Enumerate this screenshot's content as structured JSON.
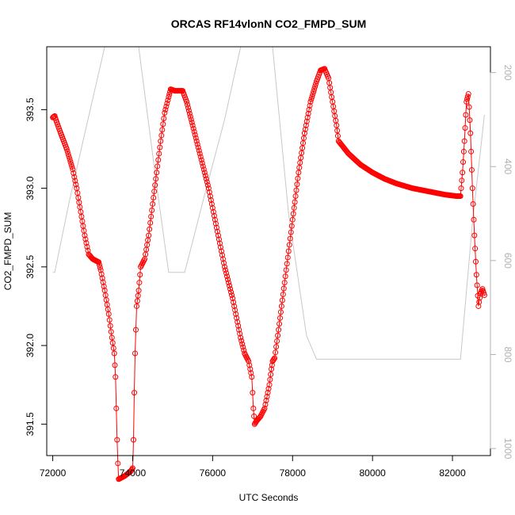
{
  "chart_data": {
    "type": "scatter",
    "title": "ORCAS RF14vlonN CO2_FMPD_SUM",
    "xlabel": "UTC Seconds",
    "ylabel": "CO2_FMPD_SUM",
    "xlim": [
      71850,
      82950
    ],
    "ylim": [
      391.3,
      393.9
    ],
    "y2lim": [
      1015,
      145
    ],
    "x_ticks": [
      72000,
      74000,
      76000,
      78000,
      80000,
      82000
    ],
    "x_tick_labels": [
      "72000",
      "74000",
      "76000",
      "78000",
      "80000",
      "82000"
    ],
    "y_ticks": [
      391.5,
      392.0,
      392.5,
      393.0,
      393.5
    ],
    "y_tick_labels": [
      "391.5",
      "392.0",
      "392.5",
      "393.0",
      "393.5"
    ],
    "y2_ticks": [
      200,
      400,
      600,
      800,
      1000
    ],
    "y2_tick_labels": [
      "200",
      "400",
      "600",
      "800",
      "1000"
    ],
    "grid": false,
    "series": [
      {
        "role": "co2",
        "color": "#ff0000",
        "marker": "open-circle",
        "line": true,
        "points": [
          [
            72000,
            393.45
          ],
          [
            72050,
            393.46
          ],
          [
            72100,
            393.42
          ],
          [
            72200,
            393.35
          ],
          [
            72350,
            393.25
          ],
          [
            72500,
            393.12
          ],
          [
            72600,
            393.0
          ],
          [
            72700,
            392.85
          ],
          [
            72800,
            392.7
          ],
          [
            72900,
            392.58
          ],
          [
            73000,
            392.55
          ],
          [
            73150,
            392.53
          ],
          [
            73200,
            392.48
          ],
          [
            73300,
            392.35
          ],
          [
            73400,
            392.2
          ],
          [
            73480,
            392.05
          ],
          [
            73540,
            391.95
          ],
          [
            73570,
            391.8
          ],
          [
            73590,
            391.6
          ],
          [
            73610,
            391.4
          ],
          [
            73630,
            391.25
          ],
          [
            73650,
            391.15
          ],
          [
            73800,
            391.17
          ],
          [
            73950,
            391.2
          ],
          [
            74000,
            391.22
          ],
          [
            74020,
            391.4
          ],
          [
            74040,
            391.7
          ],
          [
            74060,
            391.95
          ],
          [
            74080,
            392.1
          ],
          [
            74100,
            392.25
          ],
          [
            74150,
            392.35
          ],
          [
            74200,
            392.5
          ],
          [
            74300,
            392.55
          ],
          [
            74400,
            392.7
          ],
          [
            74500,
            392.9
          ],
          [
            74600,
            393.1
          ],
          [
            74700,
            393.3
          ],
          [
            74800,
            393.48
          ],
          [
            74900,
            393.58
          ],
          [
            74950,
            393.63
          ],
          [
            75050,
            393.62
          ],
          [
            75250,
            393.62
          ],
          [
            75350,
            393.55
          ],
          [
            75500,
            393.4
          ],
          [
            75700,
            393.2
          ],
          [
            75900,
            393.0
          ],
          [
            76100,
            392.75
          ],
          [
            76300,
            392.5
          ],
          [
            76500,
            392.3
          ],
          [
            76700,
            392.05
          ],
          [
            76800,
            391.95
          ],
          [
            76900,
            391.9
          ],
          [
            76980,
            391.8
          ],
          [
            77020,
            391.6
          ],
          [
            77050,
            391.5
          ],
          [
            77100,
            391.52
          ],
          [
            77200,
            391.55
          ],
          [
            77300,
            391.6
          ],
          [
            77420,
            391.75
          ],
          [
            77470,
            391.85
          ],
          [
            77500,
            391.9
          ],
          [
            77550,
            391.92
          ],
          [
            77650,
            392.1
          ],
          [
            77800,
            392.4
          ],
          [
            78000,
            392.8
          ],
          [
            78150,
            393.1
          ],
          [
            78300,
            393.35
          ],
          [
            78450,
            393.55
          ],
          [
            78600,
            393.68
          ],
          [
            78700,
            393.75
          ],
          [
            78800,
            393.76
          ],
          [
            78900,
            393.7
          ],
          [
            79000,
            393.55
          ],
          [
            79100,
            393.4
          ],
          [
            79150,
            393.3
          ],
          [
            79400,
            393.22
          ],
          [
            79700,
            393.15
          ],
          [
            80000,
            393.1
          ],
          [
            80300,
            393.06
          ],
          [
            80600,
            393.03
          ],
          [
            81000,
            393.0
          ],
          [
            81400,
            392.98
          ],
          [
            81800,
            392.96
          ],
          [
            82100,
            392.95
          ],
          [
            82200,
            392.95
          ],
          [
            82250,
            393.1
          ],
          [
            82300,
            393.3
          ],
          [
            82350,
            393.55
          ],
          [
            82400,
            393.6
          ],
          [
            82450,
            393.35
          ],
          [
            82500,
            393.0
          ],
          [
            82550,
            392.7
          ],
          [
            82600,
            392.45
          ],
          [
            82650,
            392.25
          ],
          [
            82700,
            392.33
          ],
          [
            82750,
            392.36
          ],
          [
            82800,
            392.32
          ]
        ]
      },
      {
        "role": "pressure",
        "axis": "right",
        "color": "#c8c8c8",
        "marker": "none",
        "line": true,
        "points": [
          [
            72000,
            625
          ],
          [
            72050,
            625
          ],
          [
            72400,
            480
          ],
          [
            72800,
            330
          ],
          [
            73300,
            145
          ],
          [
            74150,
            145
          ],
          [
            74600,
            440
          ],
          [
            74900,
            625
          ],
          [
            75300,
            625
          ],
          [
            75800,
            460
          ],
          [
            76300,
            300
          ],
          [
            76700,
            145
          ],
          [
            77500,
            145
          ],
          [
            77900,
            500
          ],
          [
            78350,
            760
          ],
          [
            78600,
            810
          ],
          [
            79700,
            810
          ],
          [
            80500,
            810
          ],
          [
            82200,
            810
          ],
          [
            82500,
            520
          ],
          [
            82800,
            290
          ]
        ]
      }
    ]
  }
}
